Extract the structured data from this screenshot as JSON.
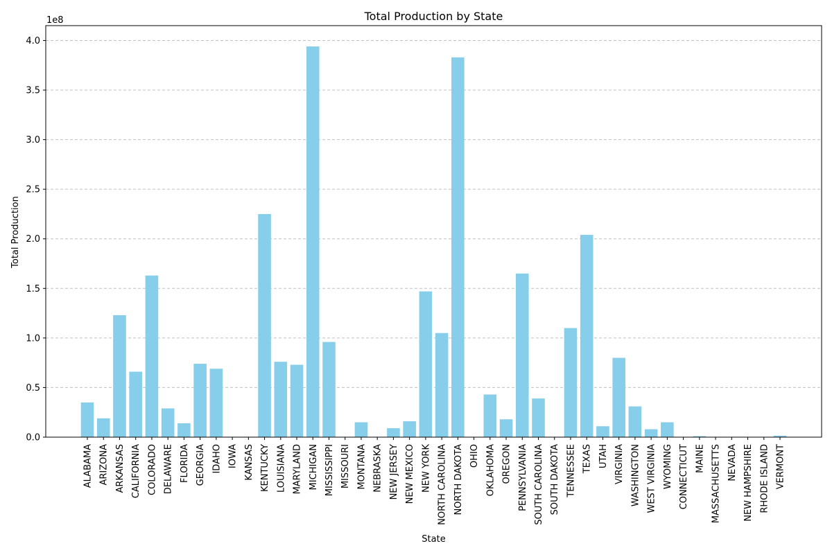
{
  "chart_data": {
    "type": "bar",
    "title": "Total Production by State",
    "xlabel": "State",
    "ylabel": "Total Production",
    "offset_label": "1e8",
    "ylim": [
      0,
      4.15
    ],
    "yticks": [
      "0.0",
      "0.5",
      "1.0",
      "1.5",
      "2.0",
      "2.5",
      "3.0",
      "3.5",
      "4.0"
    ],
    "ytick_values": [
      0,
      0.5,
      1.0,
      1.5,
      2.0,
      2.5,
      3.0,
      3.5,
      4.0
    ],
    "grid": "y-dashed",
    "bar_color": "#87CEEB",
    "grid_color": "#c0c0c0",
    "categories": [
      "ALABAMA",
      "ARIZONA",
      "ARKANSAS",
      "CALIFORNIA",
      "COLORADO",
      "DELAWARE",
      "FLORIDA",
      "GEORGIA",
      "IDAHO",
      "IOWA",
      "KANSAS",
      "KENTUCKY",
      "LOUISIANA",
      "MARYLAND",
      "MICHIGAN",
      "MISSISSIPPI",
      "MISSOURI",
      "MONTANA",
      "NEBRASKA",
      "NEW JERSEY",
      "NEW MEXICO",
      "NEW YORK",
      "NORTH CAROLINA",
      "NORTH DAKOTA",
      "OHIO",
      "OKLAHOMA",
      "OREGON",
      "PENNSYLVANIA",
      "SOUTH CAROLINA",
      "SOUTH DAKOTA",
      "TENNESSEE",
      "TEXAS",
      "UTAH",
      "VIRGINIA",
      "WASHINGTON",
      "WEST VIRGINIA",
      "WYOMING",
      "CONNECTICUT",
      "MAINE",
      "MASSACHUSETTS",
      "NEVADA",
      "NEW HAMPSHIRE",
      "RHODE ISLAND",
      "VERMONT"
    ],
    "values": [
      0.35,
      0.19,
      1.23,
      0.66,
      1.63,
      0.29,
      0.14,
      0.74,
      0.69,
      0.004,
      0.004,
      2.25,
      0.76,
      0.73,
      3.94,
      0.96,
      0.003,
      0.15,
      0.003,
      0.09,
      0.16,
      1.47,
      1.05,
      3.83,
      0.003,
      0.43,
      0.18,
      1.65,
      0.39,
      0.003,
      1.1,
      2.04,
      0.11,
      0.8,
      0.31,
      0.08,
      0.15,
      0.003,
      0.01,
      0.003,
      0.003,
      0.003,
      0.003,
      0.015
    ]
  }
}
